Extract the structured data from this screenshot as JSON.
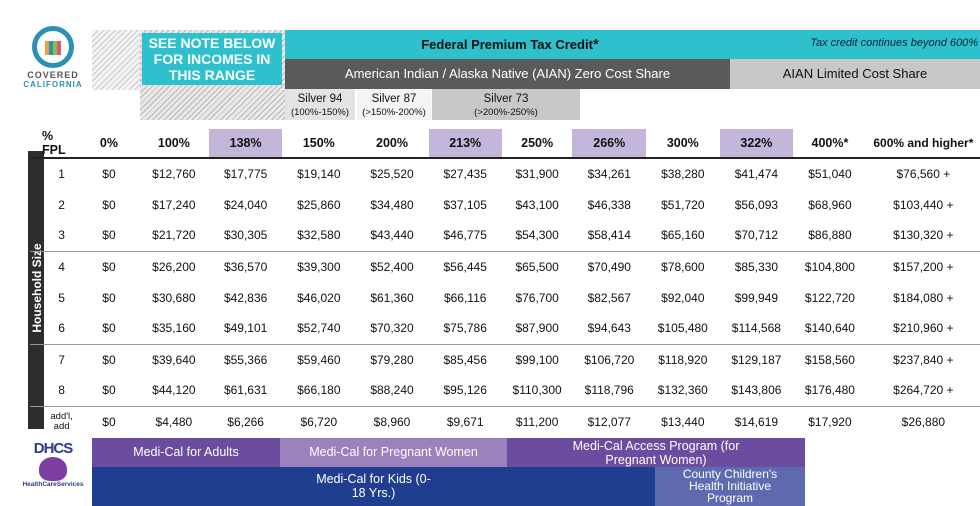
{
  "logo": {
    "line1": "COVERED",
    "line2": "CALIFORNIA"
  },
  "note_box": "SEE NOTE BELOW FOR INCOMES IN THIS RANGE",
  "federal": {
    "title": "Federal Premium Tax Credit",
    "star": "*",
    "note": "Tax credit continues beyond 600%"
  },
  "aian_zero": "American Indian / Alaska Native (AIAN) Zero Cost Share",
  "aian_limited": "AIAN Limited Cost Share",
  "silver": [
    {
      "name": "Silver 94",
      "range": "(100%-150%)"
    },
    {
      "name": "Silver 87",
      "range": "(>150%-200%)"
    },
    {
      "name": "Silver 73",
      "range": "(>200%-250%)"
    }
  ],
  "fpl_label": "% FPL",
  "columns": [
    "0%",
    "100%",
    "138%",
    "150%",
    "200%",
    "213%",
    "250%",
    "266%",
    "300%",
    "322%",
    "400%*",
    "600% and higher*"
  ],
  "side_label": "Household Size",
  "rows": [
    {
      "size": "1",
      "values": [
        "$0",
        "$12,760",
        "$17,775",
        "$19,140",
        "$25,520",
        "$27,435",
        "$31,900",
        "$34,261",
        "$38,280",
        "$41,474",
        "$51,040",
        "$76,560 +"
      ]
    },
    {
      "size": "2",
      "values": [
        "$0",
        "$17,240",
        "$24,040",
        "$25,860",
        "$34,480",
        "$37,105",
        "$43,100",
        "$46,338",
        "$51,720",
        "$56,093",
        "$68,960",
        "$103,440 +"
      ]
    },
    {
      "size": "3",
      "values": [
        "$0",
        "$21,720",
        "$30,305",
        "$32,580",
        "$43,440",
        "$46,775",
        "$54,300",
        "$58,414",
        "$65,160",
        "$70,712",
        "$86,880",
        "$130,320 +"
      ]
    },
    {
      "size": "4",
      "values": [
        "$0",
        "$26,200",
        "$36,570",
        "$39,300",
        "$52,400",
        "$56,445",
        "$65,500",
        "$70,490",
        "$78,600",
        "$85,330",
        "$104,800",
        "$157,200 +"
      ]
    },
    {
      "size": "5",
      "values": [
        "$0",
        "$30,680",
        "$42,836",
        "$46,020",
        "$61,360",
        "$66,116",
        "$76,700",
        "$82,567",
        "$92,040",
        "$99,949",
        "$122,720",
        "$184,080 +"
      ]
    },
    {
      "size": "6",
      "values": [
        "$0",
        "$35,160",
        "$49,101",
        "$52,740",
        "$70,320",
        "$75,786",
        "$87,900",
        "$94,643",
        "$105,480",
        "$114,568",
        "$140,640",
        "$210,960 +"
      ]
    },
    {
      "size": "7",
      "values": [
        "$0",
        "$39,640",
        "$55,366",
        "$59,460",
        "$79,280",
        "$85,456",
        "$99,100",
        "$106,720",
        "$118,920",
        "$129,187",
        "$158,560",
        "$237,840 +"
      ]
    },
    {
      "size": "8",
      "values": [
        "$0",
        "$44,120",
        "$61,631",
        "$66,180",
        "$88,240",
        "$95,126",
        "$110,300",
        "$118,796",
        "$132,360",
        "$143,806",
        "$176,480",
        "$264,720 +"
      ]
    },
    {
      "size": "add'l, add",
      "values": [
        "$0",
        "$4,480",
        "$6,266",
        "$6,720",
        "$8,960",
        "$9,671",
        "$11,200",
        "$12,077",
        "$13,440",
        "$14,619",
        "$17,920",
        "$26,880"
      ]
    }
  ],
  "dhcs": {
    "title": "DHCS",
    "sub": "HealthCareServices"
  },
  "programs": {
    "adults": "Medi-Cal for Adults",
    "pregnant": "Medi-Cal for Pregnant Women",
    "access": "Medi-Cal Access Program (for Pregnant Women)",
    "kids": "Medi-Cal for Kids (0-18 Yrs.)",
    "county": "County Children's Health Initiative Program"
  },
  "colors": {
    "teal": "#2ec0cc",
    "dark_gray": "#5a5a5a",
    "light_gray": "#c8c8c8",
    "lavender": "#c4b5da",
    "purple": "#6b4c9e",
    "navy": "#203e8f"
  }
}
